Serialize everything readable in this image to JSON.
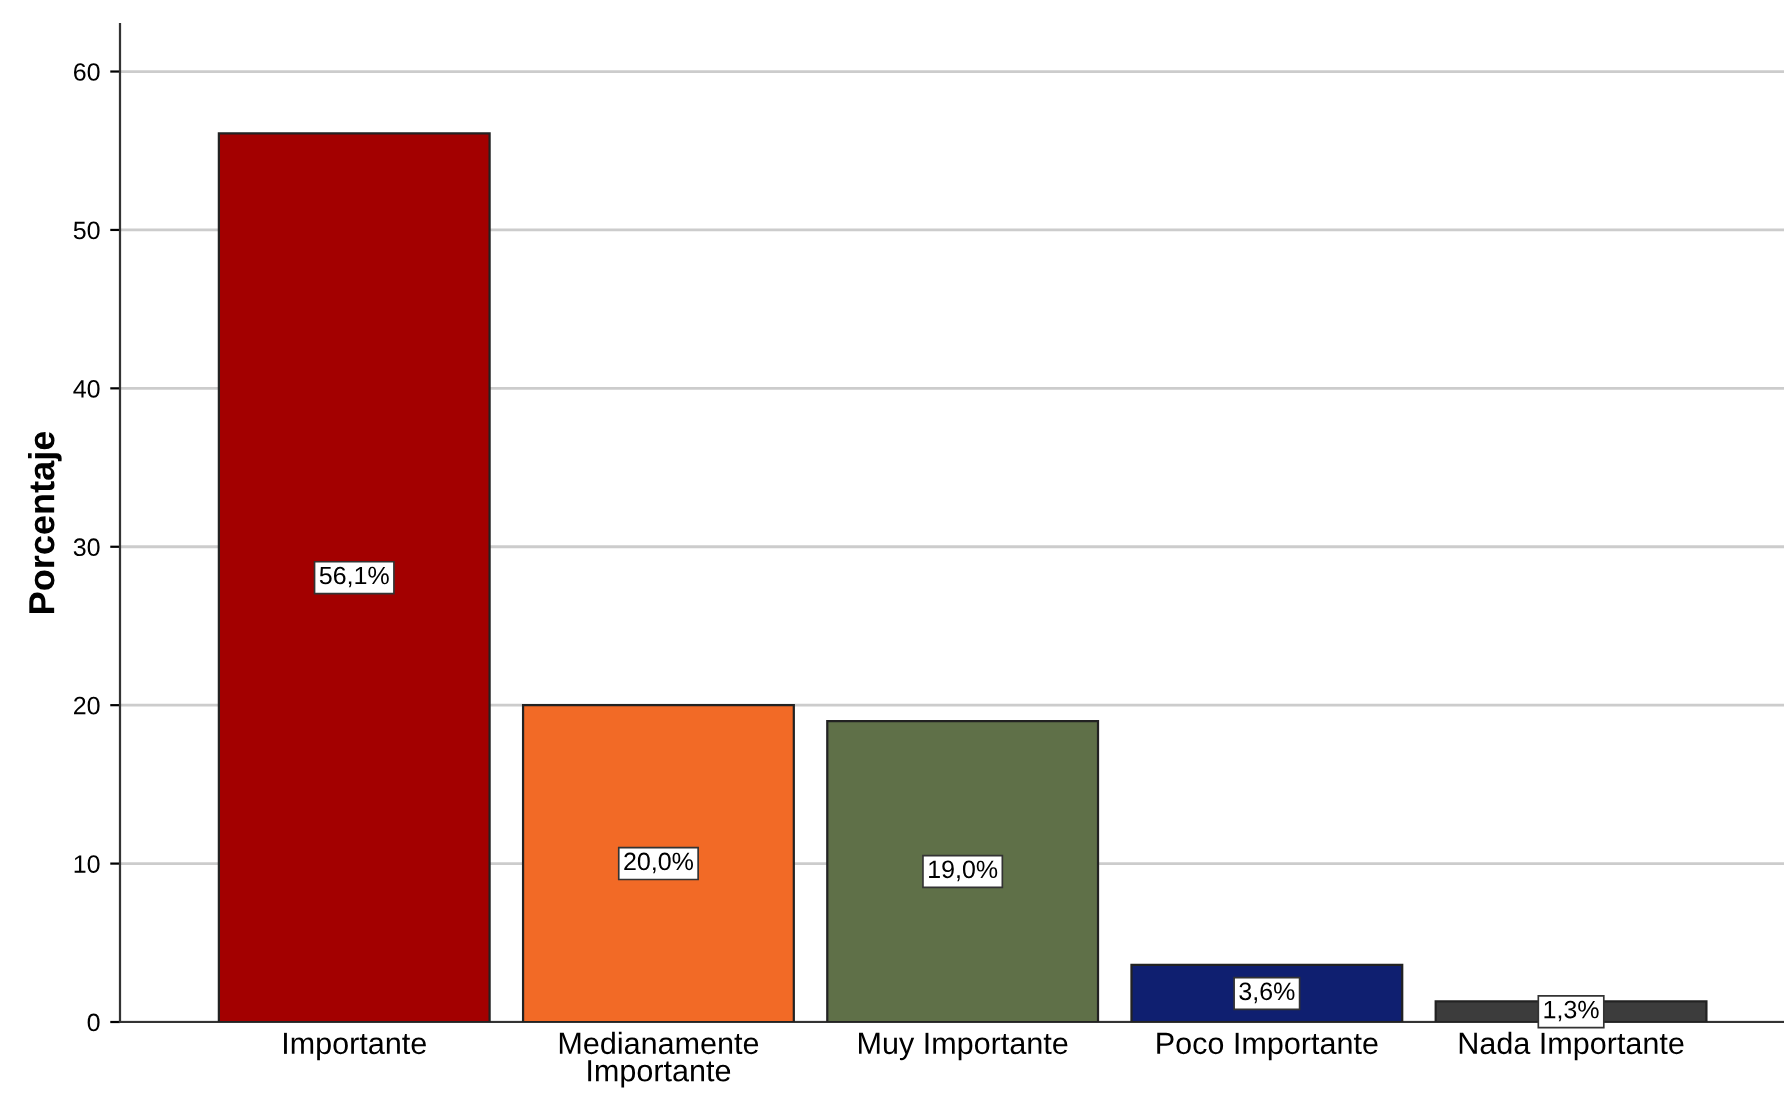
{
  "chart_data": {
    "type": "bar",
    "ylabel": "Porcentaje",
    "categories": [
      "Importante",
      "Medianamente Importante",
      "Muy Importante",
      "Poco Importante",
      "Nada Importante"
    ],
    "values": [
      56.1,
      20.0,
      19.0,
      3.6,
      1.3
    ],
    "colors": [
      "#a30000",
      "#f26a26",
      "#5f7048",
      "#0f1f70",
      "#3c3c3c"
    ],
    "value_labels": [
      "56,1%",
      "20,0%",
      "19,0%",
      "3,6%",
      "1,3%"
    ],
    "ylim": [
      0,
      63
    ],
    "yticks": [
      0,
      10,
      20,
      30,
      40,
      50,
      60
    ],
    "grid": "y",
    "legend": false
  }
}
